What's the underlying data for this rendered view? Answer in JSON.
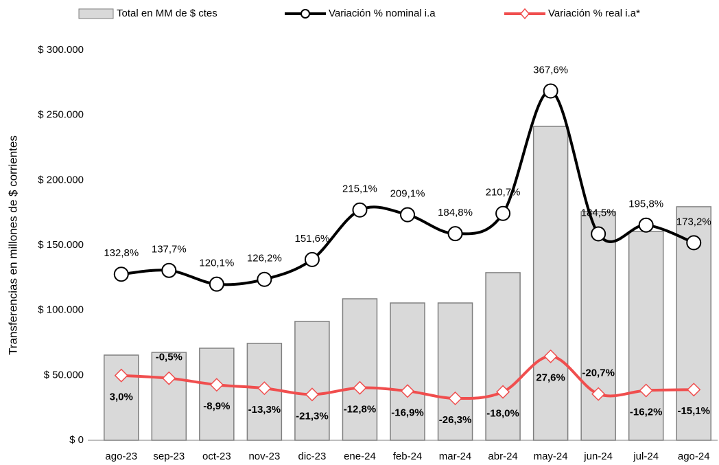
{
  "chart_data": {
    "type": "bar_line",
    "y_axis_label": "Transferencias en millones de $ corrientes",
    "categories": [
      "ago-23",
      "sep-23",
      "oct-23",
      "nov-23",
      "dic-23",
      "ene-24",
      "feb-24",
      "mar-24",
      "abr-24",
      "may-24",
      "jun-24",
      "jul-24",
      "ago-24"
    ],
    "series": [
      {
        "name": "Total en MM de $ ctes",
        "type": "bar",
        "color": "#d9d9d9",
        "stroke": "#7f7f7f",
        "values": [
          65500,
          67600,
          70800,
          74500,
          91400,
          108800,
          105600,
          105600,
          128900,
          241400,
          175900,
          160600,
          179600
        ]
      },
      {
        "name": "Variación % nominal i.a",
        "type": "line",
        "axis": "y2",
        "color": "#000000",
        "values": [
          132.8,
          137.7,
          120.1,
          126.2,
          151.6,
          215.1,
          209.1,
          184.8,
          210.7,
          367.6,
          184.5,
          195.8,
          173.2
        ],
        "value_labels": [
          "132,8%",
          "137,7%",
          "120,1%",
          "126,2%",
          "151,6%",
          "215,1%",
          "209,1%",
          "184,8%",
          "210,7%",
          "367,6%",
          "184,5%",
          "195,8%",
          "173,2%"
        ]
      },
      {
        "name": "Variación % real i.a*",
        "type": "line",
        "axis": "y2",
        "color": "#f04e4e",
        "values": [
          3.0,
          -0.5,
          -8.9,
          -13.3,
          -21.3,
          -12.8,
          -16.9,
          -26.3,
          -18.0,
          27.6,
          -20.7,
          -16.2,
          -15.1
        ],
        "value_labels": [
          "3,0%",
          "-0,5%",
          "-8,9%",
          "-13,3%",
          "-21,3%",
          "-12,8%",
          "-16,9%",
          "-26,3%",
          "-18,0%",
          "27,6%",
          "-20,7%",
          "-16,2%",
          "-15,1%"
        ]
      }
    ],
    "ylim": [
      0,
      300000
    ],
    "yticks": [
      {
        "value": 0,
        "label": "$ 0"
      },
      {
        "value": 50000,
        "label": "$ 50.000"
      },
      {
        "value": 100000,
        "label": "$ 100.000"
      },
      {
        "value": 150000,
        "label": "$ 150.000"
      },
      {
        "value": 200000,
        "label": "$ 200.000"
      },
      {
        "value": 250000,
        "label": "$ 250.000"
      },
      {
        "value": 300000,
        "label": "$ 300.000"
      }
    ],
    "y2lim": [
      -80,
      420
    ],
    "legend": "top"
  }
}
